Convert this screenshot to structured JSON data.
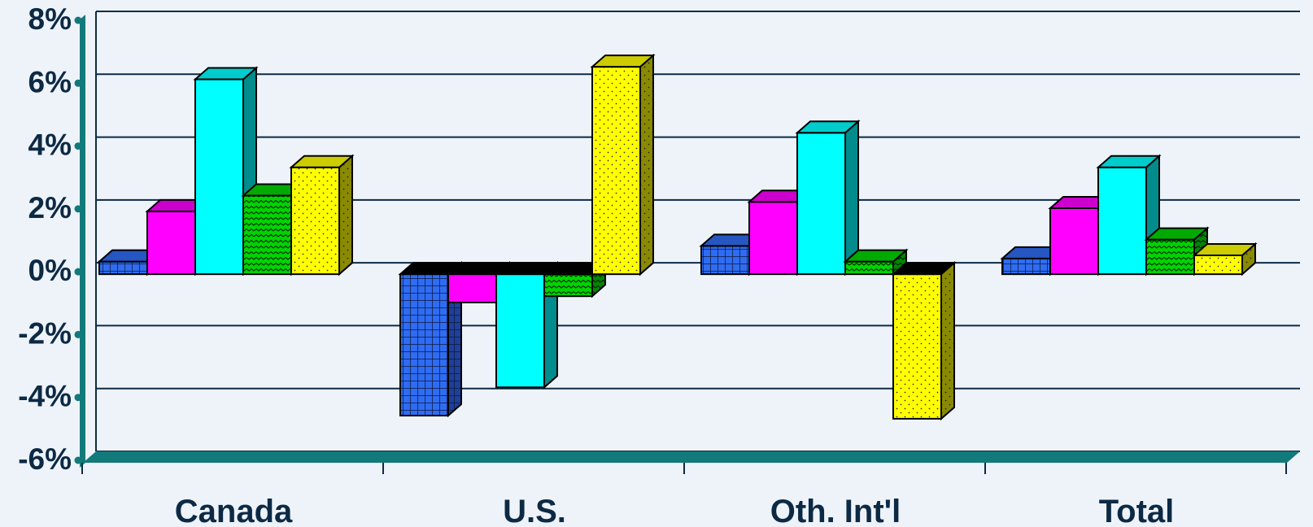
{
  "chart_data": {
    "type": "bar",
    "title": "",
    "xlabel": "",
    "ylabel": "",
    "categories": [
      "Canada",
      "U.S.",
      "Oth. Int'l",
      "Total"
    ],
    "series": [
      {
        "values": [
          0.4,
          -4.5,
          0.9,
          0.5
        ],
        "color": "#2f6cf2",
        "pattern": "grid"
      },
      {
        "values": [
          2.0,
          -0.9,
          2.3,
          2.1
        ],
        "color": "#ff00ff",
        "pattern": "solid"
      },
      {
        "values": [
          6.2,
          -3.6,
          4.5,
          3.4
        ],
        "color": "#00ffff",
        "pattern": "solid"
      },
      {
        "values": [
          2.5,
          -0.7,
          0.4,
          1.1
        ],
        "color": "#00d400",
        "pattern": "wave"
      },
      {
        "values": [
          3.4,
          6.6,
          -4.6,
          0.6
        ],
        "color": "#ffff00",
        "pattern": "dots"
      }
    ],
    "ylim": [
      -6,
      8
    ],
    "yticks": [
      "-6%",
      "-4%",
      "-2%",
      "0%",
      "2%",
      "4%",
      "6%",
      "8%"
    ],
    "grid": true,
    "legend": "none",
    "colors": {
      "axis": "#127a7a",
      "gridline": "#0d2a44",
      "background": "#eef3fa"
    }
  }
}
